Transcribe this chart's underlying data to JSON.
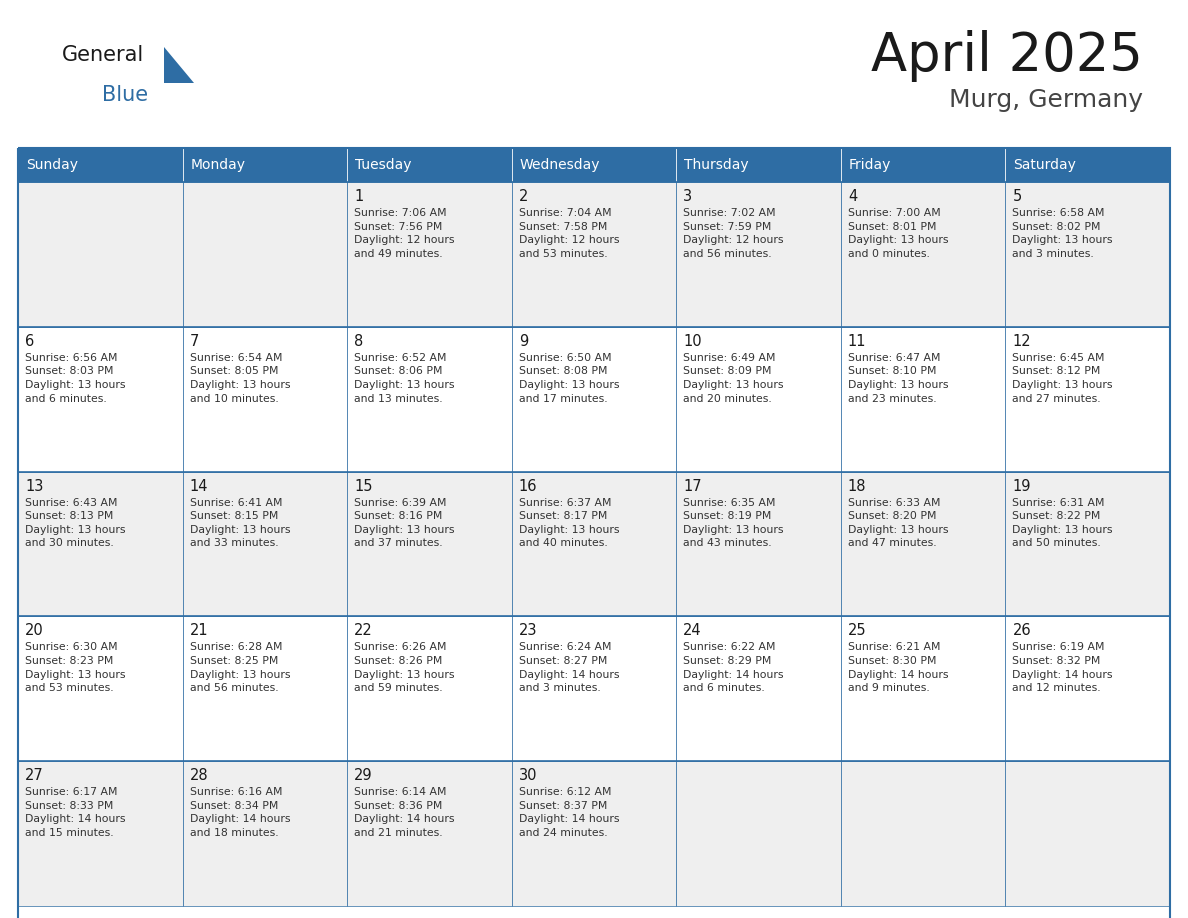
{
  "title": "April 2025",
  "subtitle": "Murg, Germany",
  "header_bg": "#2E6DA4",
  "header_text_color": "#FFFFFF",
  "cell_bg_odd": "#EFEFEF",
  "cell_bg_even": "#FFFFFF",
  "border_color": "#2E6DA4",
  "day_names": [
    "Sunday",
    "Monday",
    "Tuesday",
    "Wednesday",
    "Thursday",
    "Friday",
    "Saturday"
  ],
  "title_color": "#1a1a1a",
  "subtitle_color": "#444444",
  "day_num_color": "#1a1a1a",
  "cell_text_color": "#333333",
  "logo_general_color": "#1a1a1a",
  "logo_blue_color": "#2E6DA4",
  "weeks": [
    [
      {
        "day": "",
        "text": ""
      },
      {
        "day": "",
        "text": ""
      },
      {
        "day": "1",
        "text": "Sunrise: 7:06 AM\nSunset: 7:56 PM\nDaylight: 12 hours\nand 49 minutes."
      },
      {
        "day": "2",
        "text": "Sunrise: 7:04 AM\nSunset: 7:58 PM\nDaylight: 12 hours\nand 53 minutes."
      },
      {
        "day": "3",
        "text": "Sunrise: 7:02 AM\nSunset: 7:59 PM\nDaylight: 12 hours\nand 56 minutes."
      },
      {
        "day": "4",
        "text": "Sunrise: 7:00 AM\nSunset: 8:01 PM\nDaylight: 13 hours\nand 0 minutes."
      },
      {
        "day": "5",
        "text": "Sunrise: 6:58 AM\nSunset: 8:02 PM\nDaylight: 13 hours\nand 3 minutes."
      }
    ],
    [
      {
        "day": "6",
        "text": "Sunrise: 6:56 AM\nSunset: 8:03 PM\nDaylight: 13 hours\nand 6 minutes."
      },
      {
        "day": "7",
        "text": "Sunrise: 6:54 AM\nSunset: 8:05 PM\nDaylight: 13 hours\nand 10 minutes."
      },
      {
        "day": "8",
        "text": "Sunrise: 6:52 AM\nSunset: 8:06 PM\nDaylight: 13 hours\nand 13 minutes."
      },
      {
        "day": "9",
        "text": "Sunrise: 6:50 AM\nSunset: 8:08 PM\nDaylight: 13 hours\nand 17 minutes."
      },
      {
        "day": "10",
        "text": "Sunrise: 6:49 AM\nSunset: 8:09 PM\nDaylight: 13 hours\nand 20 minutes."
      },
      {
        "day": "11",
        "text": "Sunrise: 6:47 AM\nSunset: 8:10 PM\nDaylight: 13 hours\nand 23 minutes."
      },
      {
        "day": "12",
        "text": "Sunrise: 6:45 AM\nSunset: 8:12 PM\nDaylight: 13 hours\nand 27 minutes."
      }
    ],
    [
      {
        "day": "13",
        "text": "Sunrise: 6:43 AM\nSunset: 8:13 PM\nDaylight: 13 hours\nand 30 minutes."
      },
      {
        "day": "14",
        "text": "Sunrise: 6:41 AM\nSunset: 8:15 PM\nDaylight: 13 hours\nand 33 minutes."
      },
      {
        "day": "15",
        "text": "Sunrise: 6:39 AM\nSunset: 8:16 PM\nDaylight: 13 hours\nand 37 minutes."
      },
      {
        "day": "16",
        "text": "Sunrise: 6:37 AM\nSunset: 8:17 PM\nDaylight: 13 hours\nand 40 minutes."
      },
      {
        "day": "17",
        "text": "Sunrise: 6:35 AM\nSunset: 8:19 PM\nDaylight: 13 hours\nand 43 minutes."
      },
      {
        "day": "18",
        "text": "Sunrise: 6:33 AM\nSunset: 8:20 PM\nDaylight: 13 hours\nand 47 minutes."
      },
      {
        "day": "19",
        "text": "Sunrise: 6:31 AM\nSunset: 8:22 PM\nDaylight: 13 hours\nand 50 minutes."
      }
    ],
    [
      {
        "day": "20",
        "text": "Sunrise: 6:30 AM\nSunset: 8:23 PM\nDaylight: 13 hours\nand 53 minutes."
      },
      {
        "day": "21",
        "text": "Sunrise: 6:28 AM\nSunset: 8:25 PM\nDaylight: 13 hours\nand 56 minutes."
      },
      {
        "day": "22",
        "text": "Sunrise: 6:26 AM\nSunset: 8:26 PM\nDaylight: 13 hours\nand 59 minutes."
      },
      {
        "day": "23",
        "text": "Sunrise: 6:24 AM\nSunset: 8:27 PM\nDaylight: 14 hours\nand 3 minutes."
      },
      {
        "day": "24",
        "text": "Sunrise: 6:22 AM\nSunset: 8:29 PM\nDaylight: 14 hours\nand 6 minutes."
      },
      {
        "day": "25",
        "text": "Sunrise: 6:21 AM\nSunset: 8:30 PM\nDaylight: 14 hours\nand 9 minutes."
      },
      {
        "day": "26",
        "text": "Sunrise: 6:19 AM\nSunset: 8:32 PM\nDaylight: 14 hours\nand 12 minutes."
      }
    ],
    [
      {
        "day": "27",
        "text": "Sunrise: 6:17 AM\nSunset: 8:33 PM\nDaylight: 14 hours\nand 15 minutes."
      },
      {
        "day": "28",
        "text": "Sunrise: 6:16 AM\nSunset: 8:34 PM\nDaylight: 14 hours\nand 18 minutes."
      },
      {
        "day": "29",
        "text": "Sunrise: 6:14 AM\nSunset: 8:36 PM\nDaylight: 14 hours\nand 21 minutes."
      },
      {
        "day": "30",
        "text": "Sunrise: 6:12 AM\nSunset: 8:37 PM\nDaylight: 14 hours\nand 24 minutes."
      },
      {
        "day": "",
        "text": ""
      },
      {
        "day": "",
        "text": ""
      },
      {
        "day": "",
        "text": ""
      }
    ]
  ]
}
